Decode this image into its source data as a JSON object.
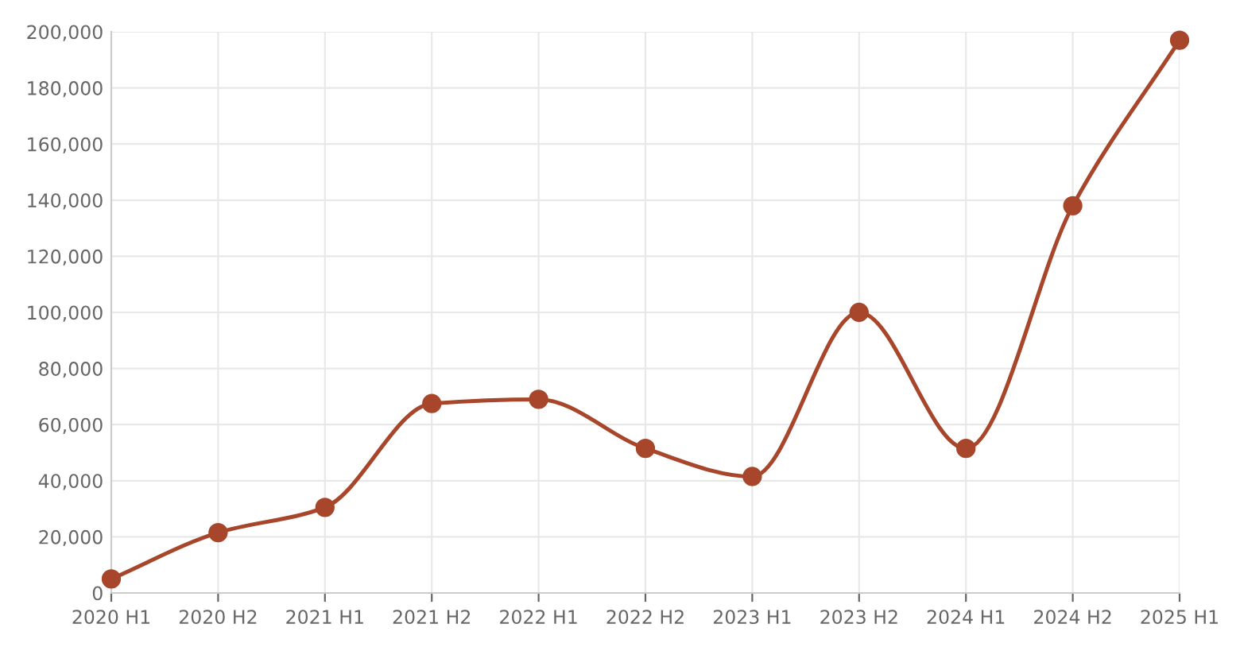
{
  "chart_data": {
    "type": "line",
    "categories": [
      "2020 H1",
      "2020 H2",
      "2021 H1",
      "2021 H2",
      "2022 H1",
      "2022 H2",
      "2023 H1",
      "2023 H2",
      "2024 H1",
      "2024 H2",
      "2025 H1"
    ],
    "series": [
      {
        "color": "#a8462b",
        "values": [
          5000,
          21500,
          30500,
          67500,
          69000,
          51500,
          41500,
          100000,
          51500,
          138000,
          197000
        ]
      }
    ],
    "ylim": [
      0,
      200000
    ],
    "yticks": [
      {
        "value": 0,
        "label": "0"
      },
      {
        "value": 20000,
        "label": "20,000"
      },
      {
        "value": 40000,
        "label": "40,000"
      },
      {
        "value": 60000,
        "label": "60,000"
      },
      {
        "value": 80000,
        "label": "80,000"
      },
      {
        "value": 100000,
        "label": "100,000"
      },
      {
        "value": 120000,
        "label": "120,000"
      },
      {
        "value": 140000,
        "label": "140,000"
      },
      {
        "value": 160000,
        "label": "160,000"
      },
      {
        "value": 180000,
        "label": "180,000"
      },
      {
        "value": 200000,
        "label": "200,000"
      }
    ],
    "grid": true,
    "marker": "circle",
    "line_style": "solid"
  }
}
